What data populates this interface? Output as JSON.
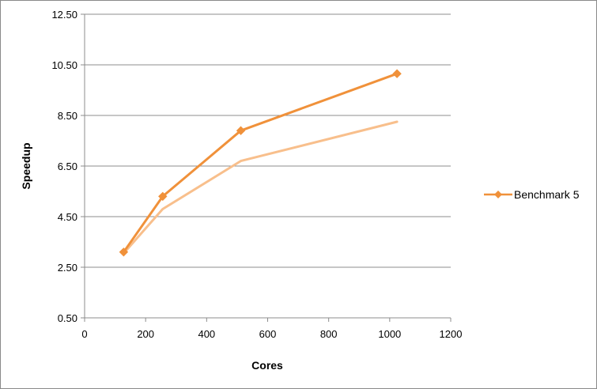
{
  "chart_data": {
    "type": "line",
    "title": "",
    "xlabel": "Cores",
    "ylabel": "Speedup",
    "xlim": [
      0,
      1200
    ],
    "ylim": [
      0.5,
      12.5
    ],
    "x_ticks": [
      "0",
      "200",
      "400",
      "600",
      "800",
      "1000",
      "1200"
    ],
    "y_ticks": [
      "0.50",
      "2.50",
      "4.50",
      "6.50",
      "8.50",
      "10.50",
      "12.50"
    ],
    "grid": "horizontal",
    "legend_position": "right",
    "series": [
      {
        "name": "Benchmark 5",
        "color": "#f0913a",
        "marker": "diamond",
        "x": [
          128,
          256,
          512,
          1024
        ],
        "y": [
          3.1,
          5.3,
          7.9,
          10.15
        ]
      },
      {
        "color": "#f8bf8c",
        "marker": "none",
        "x": [
          128,
          256,
          512,
          1024
        ],
        "y": [
          3.05,
          4.8,
          6.7,
          8.25
        ]
      }
    ]
  }
}
